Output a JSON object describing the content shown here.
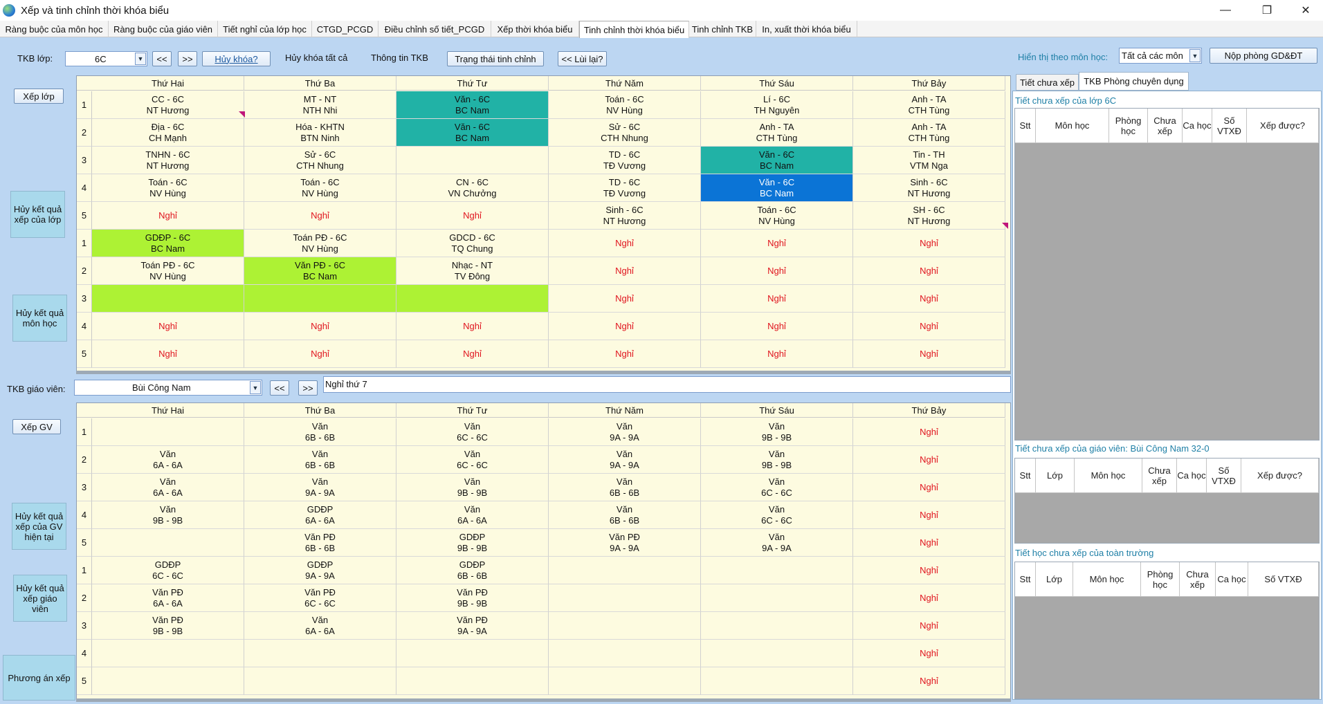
{
  "window": {
    "title": "Xếp và tinh chỉnh thời khóa biểu",
    "minimize": "—",
    "maximize": "❐",
    "close": "✕"
  },
  "tabs": [
    "Ràng buộc của môn học",
    "Ràng buộc của giáo viên",
    "Tiết nghỉ của lớp học",
    "CTGD_PCGD",
    "Điều chỉnh số tiết_PCGD",
    "Xếp thời khóa biểu",
    "Tinh chỉnh thời khóa biểu",
    "Tinh chỉnh TKB",
    "In, xuất thời khóa biểu"
  ],
  "active_tab": "Tinh chỉnh thời khóa biểu",
  "toolbar": {
    "class_label": "TKB lớp:",
    "class_value": "6C",
    "prev": "<<",
    "next": ">>",
    "unlock": "Hủy khóa?",
    "unlock_all": "Hủy khóa tất cả",
    "info": "Thông tin TKB",
    "state": "Trạng thái tinh chỉnh",
    "undo": "<< Lùi lại?",
    "subject_filter_label": "Hiển thị theo môn học:",
    "subject_filter_value": "Tất cả các môn",
    "submit": "Nộp phòng GD&ĐT"
  },
  "side_buttons": {
    "xep_lop": "Xếp lớp",
    "huy_lop": "Hủy kết quả xếp của lớp",
    "huy_mon": "Hủy kết quả môn học",
    "xep_gv": "Xếp GV",
    "huy_gv_ht": "Hủy kết quả xếp của GV hiện tại",
    "huy_gv": "Hủy kết quả xếp giáo viên",
    "phuong_an": "Phương án xếp"
  },
  "days": [
    "Thứ Hai",
    "Thứ Ba",
    "Thứ Tư",
    "Thứ Năm",
    "Thứ Sáu",
    "Thứ Bảy"
  ],
  "periods": [
    "1",
    "2",
    "3",
    "4",
    "5",
    "1",
    "2",
    "3",
    "4",
    "5"
  ],
  "class_grid": [
    [
      {
        "t": "CC - 6C",
        "s": "NT Hương"
      },
      {
        "t": "MT - NT",
        "s": "NTH Nhi"
      },
      {
        "t": "Văn - 6C",
        "s": "BC Nam",
        "c": "teal"
      },
      {
        "t": "Toán - 6C",
        "s": "NV Hùng"
      },
      {
        "t": "Lí - 6C",
        "s": "TH Nguyên"
      },
      {
        "t": "Anh - TA",
        "s": "CTH Tùng"
      }
    ],
    [
      {
        "t": "Địa - 6C",
        "s": "CH Mạnh"
      },
      {
        "t": "Hóa - KHTN",
        "s": "BTN Ninh"
      },
      {
        "t": "Văn - 6C",
        "s": "BC Nam",
        "c": "teal"
      },
      {
        "t": "Sử - 6C",
        "s": "CTH Nhung"
      },
      {
        "t": "Anh - TA",
        "s": "CTH Tùng"
      },
      {
        "t": "Anh - TA",
        "s": "CTH Tùng"
      }
    ],
    [
      {
        "t": "TNHN - 6C",
        "s": "NT Hương"
      },
      {
        "t": "Sử - 6C",
        "s": "CTH Nhung"
      },
      {
        "t": "",
        "s": ""
      },
      {
        "t": "TD - 6C",
        "s": "TĐ Vương"
      },
      {
        "t": "Văn - 6C",
        "s": "BC Nam",
        "c": "teal"
      },
      {
        "t": "Tin - TH",
        "s": "VTM Nga"
      }
    ],
    [
      {
        "t": "Toán - 6C",
        "s": "NV Hùng"
      },
      {
        "t": "Toán - 6C",
        "s": "NV Hùng"
      },
      {
        "t": "CN - 6C",
        "s": "VN Chưởng"
      },
      {
        "t": "TD - 6C",
        "s": "TĐ Vương"
      },
      {
        "t": "Văn - 6C",
        "s": "BC Nam",
        "c": "blue"
      },
      {
        "t": "Sinh - 6C",
        "s": "NT Hương"
      }
    ],
    [
      {
        "t": "Nghỉ",
        "c": "red"
      },
      {
        "t": "Nghỉ",
        "c": "red"
      },
      {
        "t": "Nghỉ",
        "c": "red"
      },
      {
        "t": "Sinh - 6C",
        "s": "NT Hương"
      },
      {
        "t": "Toán - 6C",
        "s": "NV Hùng"
      },
      {
        "t": "SH - 6C",
        "s": "NT Hương"
      }
    ],
    [
      {
        "t": "GDĐP - 6C",
        "s": "BC Nam",
        "c": "green"
      },
      {
        "t": "Toán PĐ - 6C",
        "s": "NV Hùng"
      },
      {
        "t": "GDCD - 6C",
        "s": "TQ Chung"
      },
      {
        "t": "Nghỉ",
        "c": "red"
      },
      {
        "t": "Nghỉ",
        "c": "red"
      },
      {
        "t": "Nghỉ",
        "c": "red"
      }
    ],
    [
      {
        "t": "Toán PĐ - 6C",
        "s": "NV Hùng"
      },
      {
        "t": "Văn PĐ - 6C",
        "s": "BC Nam",
        "c": "green"
      },
      {
        "t": "Nhạc - NT",
        "s": "TV Đông"
      },
      {
        "t": "Nghỉ",
        "c": "red"
      },
      {
        "t": "Nghỉ",
        "c": "red"
      },
      {
        "t": "Nghỉ",
        "c": "red"
      }
    ],
    [
      {
        "t": "",
        "c": "green"
      },
      {
        "t": "",
        "c": "green"
      },
      {
        "t": "",
        "c": "green"
      },
      {
        "t": "Nghỉ",
        "c": "red"
      },
      {
        "t": "Nghỉ",
        "c": "red"
      },
      {
        "t": "Nghỉ",
        "c": "red"
      }
    ],
    [
      {
        "t": "Nghỉ",
        "c": "red"
      },
      {
        "t": "Nghỉ",
        "c": "red"
      },
      {
        "t": "Nghỉ",
        "c": "red"
      },
      {
        "t": "Nghỉ",
        "c": "red"
      },
      {
        "t": "Nghỉ",
        "c": "red"
      },
      {
        "t": "Nghỉ",
        "c": "red"
      }
    ],
    [
      {
        "t": "Nghỉ",
        "c": "red"
      },
      {
        "t": "Nghỉ",
        "c": "red"
      },
      {
        "t": "Nghỉ",
        "c": "red"
      },
      {
        "t": "Nghỉ",
        "c": "red"
      },
      {
        "t": "Nghỉ",
        "c": "red"
      },
      {
        "t": "Nghỉ",
        "c": "red"
      }
    ]
  ],
  "teacher_bar": {
    "label": "TKB giáo viên:",
    "value": "Bùi Công Nam",
    "prev": "<<",
    "next": ">>",
    "note": "Nghỉ thứ 7"
  },
  "teacher_grid": [
    [
      {
        "t": "",
        "s": ""
      },
      {
        "t": "Văn",
        "s": "6B - 6B"
      },
      {
        "t": "Văn",
        "s": "6C - 6C"
      },
      {
        "t": "Văn",
        "s": "9A - 9A"
      },
      {
        "t": "Văn",
        "s": "9B - 9B"
      },
      {
        "t": "Nghỉ",
        "c": "red"
      }
    ],
    [
      {
        "t": "Văn",
        "s": "6A - 6A"
      },
      {
        "t": "Văn",
        "s": "6B - 6B"
      },
      {
        "t": "Văn",
        "s": "6C - 6C"
      },
      {
        "t": "Văn",
        "s": "9A - 9A"
      },
      {
        "t": "Văn",
        "s": "9B - 9B"
      },
      {
        "t": "Nghỉ",
        "c": "red"
      }
    ],
    [
      {
        "t": "Văn",
        "s": "6A - 6A"
      },
      {
        "t": "Văn",
        "s": "9A - 9A"
      },
      {
        "t": "Văn",
        "s": "9B - 9B"
      },
      {
        "t": "Văn",
        "s": "6B - 6B"
      },
      {
        "t": "Văn",
        "s": "6C - 6C"
      },
      {
        "t": "Nghỉ",
        "c": "red"
      }
    ],
    [
      {
        "t": "Văn",
        "s": "9B - 9B"
      },
      {
        "t": "GDĐP",
        "s": "6A - 6A"
      },
      {
        "t": "Văn",
        "s": "6A - 6A"
      },
      {
        "t": "Văn",
        "s": "6B - 6B"
      },
      {
        "t": "Văn",
        "s": "6C - 6C"
      },
      {
        "t": "Nghỉ",
        "c": "red"
      }
    ],
    [
      {
        "t": "",
        "s": ""
      },
      {
        "t": "Văn PĐ",
        "s": "6B - 6B"
      },
      {
        "t": "GDĐP",
        "s": "9B - 9B"
      },
      {
        "t": "Văn PĐ",
        "s": "9A - 9A"
      },
      {
        "t": "Văn",
        "s": "9A - 9A"
      },
      {
        "t": "Nghỉ",
        "c": "red"
      }
    ],
    [
      {
        "t": "GDĐP",
        "s": "6C - 6C"
      },
      {
        "t": "GDĐP",
        "s": "9A - 9A"
      },
      {
        "t": "GDĐP",
        "s": "6B - 6B"
      },
      {
        "t": "",
        "s": ""
      },
      {
        "t": "",
        "s": ""
      },
      {
        "t": "Nghỉ",
        "c": "red"
      }
    ],
    [
      {
        "t": "Văn PĐ",
        "s": "6A - 6A"
      },
      {
        "t": "Văn PĐ",
        "s": "6C - 6C"
      },
      {
        "t": "Văn PĐ",
        "s": "9B - 9B"
      },
      {
        "t": "",
        "s": ""
      },
      {
        "t": "",
        "s": ""
      },
      {
        "t": "Nghỉ",
        "c": "red"
      }
    ],
    [
      {
        "t": "Văn PĐ",
        "s": "9B - 9B"
      },
      {
        "t": "Văn",
        "s": "6A - 6A"
      },
      {
        "t": "Văn PĐ",
        "s": "9A - 9A"
      },
      {
        "t": "",
        "s": ""
      },
      {
        "t": "",
        "s": ""
      },
      {
        "t": "Nghỉ",
        "c": "red"
      }
    ],
    [
      {
        "t": "",
        "s": ""
      },
      {
        "t": "",
        "s": ""
      },
      {
        "t": "",
        "s": ""
      },
      {
        "t": "",
        "s": ""
      },
      {
        "t": "",
        "s": ""
      },
      {
        "t": "Nghỉ",
        "c": "red"
      }
    ],
    [
      {
        "t": "",
        "s": ""
      },
      {
        "t": "",
        "s": ""
      },
      {
        "t": "",
        "s": ""
      },
      {
        "t": "",
        "s": ""
      },
      {
        "t": "",
        "s": ""
      },
      {
        "t": "Nghỉ",
        "c": "red"
      }
    ]
  ],
  "right": {
    "tab1": "Tiết chưa xếp",
    "tab2": "TKB Phòng chuyên dụng",
    "title1": "Tiết chưa xếp của lớp 6C",
    "cols1": [
      "Stt",
      "Môn học",
      "Phòng học",
      "Chưa xếp",
      "Ca học",
      "Số VTXĐ",
      "Xếp được?"
    ],
    "title2": "Tiết chưa xếp của giáo viên: Bùi Công Nam 32-0",
    "cols2": [
      "Stt",
      "Lớp",
      "Môn học",
      "Chưa xếp",
      "Ca học",
      "Số VTXĐ",
      "Xếp được?"
    ],
    "title3": "Tiết học chưa xếp của toàn trường",
    "cols3": [
      "Stt",
      "Lớp",
      "Môn học",
      "Phòng học",
      "Chưa xếp",
      "Ca học",
      "Số VTXĐ"
    ]
  },
  "colors": {
    "teal": "#21b2a6",
    "blue": "#0b74d6",
    "green": "#adf234",
    "red": "#e0141e",
    "cell_bg": "#fdfbe0"
  }
}
